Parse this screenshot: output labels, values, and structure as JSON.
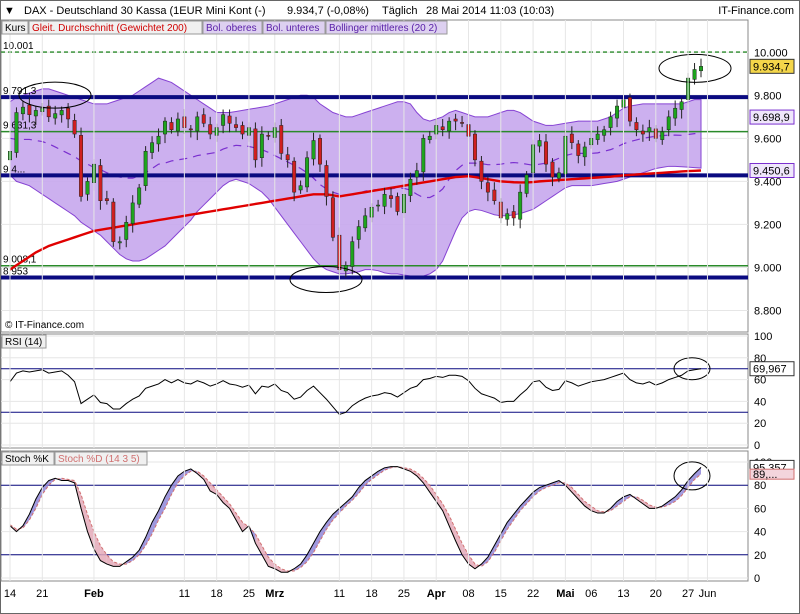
{
  "header": {
    "symbol": "DAX - Deutschland 30 Kassa (1EUR Mini Kont (-)",
    "quote": "9.934,7 (-0,08%)",
    "period": "Täglich",
    "datetime": "28 Mai 2014 11:03 (10:03)",
    "source": "IT-Finance.com"
  },
  "legend": {
    "kurs": "Kurs",
    "ma200": "Gleit. Durchschnitt (Gewichtet 200)",
    "bol_upper": "Bol. oberes",
    "bol_lower": "Bol. unteres",
    "bol_mid": "Bollinger mittleres (20 2)"
  },
  "watermark": "© IT-Finance.com",
  "colors": {
    "up": "#1ea51e",
    "down": "#d01f1f",
    "ma200": "#e00000",
    "bollinger_fill": "#c7a8ee",
    "bollinger_line": "#7a2fcf",
    "support": "#0a0a80",
    "green_level": "#2a8a2a",
    "rsi_line": "#000000",
    "stoch_k": "#000000",
    "stoch_d": "#d07070",
    "badge_price": "#f4d64a"
  },
  "chart_data": [
    {
      "type": "candlestick",
      "title": "DAX - Deutschland 30 Kassa (1EUR Mini Kont (-)",
      "ylim": [
        8700,
        10150
      ],
      "yticks": [
        8800,
        9000,
        9200,
        9400,
        9600,
        9800,
        10000
      ],
      "ytick_labels": [
        "8.800",
        "9.000",
        "9.200",
        "9.400",
        "9.600",
        "9.800",
        "10.000"
      ],
      "x_labels": [
        "14",
        "21",
        "Feb",
        "11",
        "18",
        "25",
        "Mrz",
        "11",
        "18",
        "25",
        "Apr",
        "08",
        "15",
        "22",
        "Mai",
        "06",
        "13",
        "20",
        "27",
        "Jun"
      ],
      "x_label_days": [
        0,
        5,
        13,
        27,
        32,
        37,
        41,
        51,
        56,
        61,
        66,
        71,
        76,
        81,
        86,
        90,
        95,
        100,
        105,
        108
      ],
      "level_labels": [
        "10.001",
        "9.791,3",
        "9.631,3",
        "9.4...",
        "9.008,1",
        "8.953"
      ],
      "horizontal_levels": [
        {
          "value": 10001,
          "style": "dashed-green"
        },
        {
          "value": 9791.3,
          "style": "support"
        },
        {
          "value": 9631.3,
          "style": "green"
        },
        {
          "value": 9428,
          "style": "support"
        },
        {
          "value": 9008.1,
          "style": "green"
        },
        {
          "value": 8953,
          "style": "support"
        }
      ],
      "value_badges": [
        {
          "value": 9934.7,
          "label": "9.934,7",
          "style": "price"
        },
        {
          "value": 9698.9,
          "label": "9.698,9",
          "style": "bol_upper"
        },
        {
          "value": 9450.6,
          "label": "9.450,6",
          "style": "ma200"
        }
      ],
      "series": [
        {
          "name": "Kurs",
          "close": [
            9540,
            9720,
            9745,
            9710,
            9730,
            9740,
            9700,
            9715,
            9730,
            9690,
            9620,
            9330,
            9400,
            9480,
            9310,
            9310,
            9120,
            9120,
            9210,
            9300,
            9370,
            9540,
            9580,
            9610,
            9680,
            9640,
            9690,
            9650,
            9640,
            9700,
            9670,
            9620,
            9650,
            9710,
            9670,
            9650,
            9620,
            9650,
            9500,
            9620,
            9610,
            9650,
            9530,
            9500,
            9350,
            9380,
            9510,
            9590,
            9480,
            9330,
            9140,
            8990,
            9010,
            9120,
            9190,
            9240,
            9280,
            9290,
            9340,
            9320,
            9260,
            9340,
            9410,
            9450,
            9600,
            9610,
            9660,
            9640,
            9680,
            9680,
            9670,
            9610,
            9500,
            9400,
            9350,
            9310,
            9230,
            9250,
            9230,
            9350,
            9430,
            9570,
            9590,
            9480,
            9420,
            9440,
            9610,
            9580,
            9520,
            9560,
            9600,
            9620,
            9640,
            9700,
            9750,
            9780,
            9680,
            9640,
            9620,
            9650,
            9600,
            9630,
            9700,
            9740,
            9770,
            9880,
            9920,
            9934.7
          ]
        },
        {
          "name": "Gleit. Durchschnitt (Gewichtet 200)",
          "values": [
            8990,
            9010,
            9030,
            9050,
            9070,
            9085,
            9100,
            9110,
            9120,
            9130,
            9140,
            9150,
            9160,
            9170,
            9175,
            9180,
            9185,
            9190,
            9195,
            9200,
            9205,
            9210,
            9215,
            9220,
            9225,
            9230,
            9235,
            9240,
            9245,
            9250,
            9255,
            9260,
            9265,
            9270,
            9275,
            9280,
            9285,
            9290,
            9295,
            9300,
            9305,
            9310,
            9315,
            9320,
            9325,
            9330,
            9335,
            9340,
            9340,
            9340,
            9335,
            9330,
            9335,
            9340,
            9345,
            9350,
            9355,
            9360,
            9365,
            9370,
            9375,
            9380,
            9385,
            9390,
            9395,
            9400,
            9405,
            9410,
            9415,
            9420,
            9422,
            9424,
            9420,
            9415,
            9410,
            9405,
            9400,
            9398,
            9396,
            9395,
            9395,
            9397,
            9400,
            9402,
            9404,
            9406,
            9408,
            9410,
            9412,
            9414,
            9416,
            9418,
            9420,
            9422,
            9425,
            9428,
            9430,
            9432,
            9434,
            9436,
            9438,
            9440,
            9442,
            9444,
            9446,
            9448,
            9449,
            9450.6
          ]
        },
        {
          "name": "Bol. oberes",
          "values": [
            9770,
            9790,
            9800,
            9810,
            9820,
            9830,
            9830,
            9820,
            9810,
            9800,
            9790,
            9780,
            9770,
            9760,
            9760,
            9760,
            9770,
            9780,
            9790,
            9800,
            9820,
            9840,
            9860,
            9880,
            9870,
            9860,
            9840,
            9820,
            9800,
            9780,
            9760,
            9740,
            9720,
            9720,
            9720,
            9725,
            9730,
            9735,
            9740,
            9745,
            9750,
            9760,
            9770,
            9780,
            9790,
            9800,
            9800,
            9790,
            9760,
            9740,
            9720,
            9710,
            9700,
            9700,
            9710,
            9720,
            9730,
            9740,
            9750,
            9760,
            9770,
            9770,
            9760,
            9720,
            9690,
            9680,
            9690,
            9700,
            9720,
            9730,
            9720,
            9710,
            9700,
            9700,
            9700,
            9710,
            9720,
            9730,
            9730,
            9720,
            9700,
            9680,
            9670,
            9660,
            9660,
            9665,
            9670,
            9675,
            9680,
            9680,
            9680,
            9680,
            9690,
            9700,
            9720,
            9740,
            9750,
            9755,
            9760,
            9760,
            9760,
            9760,
            9760,
            9760,
            9760,
            9770,
            9780,
            9780
          ]
        },
        {
          "name": "Bol. unteres",
          "values": [
            9430,
            9400,
            9390,
            9380,
            9360,
            9340,
            9320,
            9300,
            9280,
            9260,
            9240,
            9210,
            9190,
            9170,
            9150,
            9120,
            9090,
            9060,
            9040,
            9030,
            9030,
            9040,
            9060,
            9080,
            9100,
            9130,
            9160,
            9190,
            9220,
            9260,
            9290,
            9320,
            9350,
            9380,
            9400,
            9410,
            9400,
            9390,
            9370,
            9350,
            9320,
            9280,
            9240,
            9200,
            9160,
            9120,
            9080,
            9040,
            9010,
            8990,
            8980,
            8970,
            8970,
            8975,
            8980,
            8990,
            8990,
            8985,
            8975,
            8970,
            8970,
            8965,
            8960,
            8960,
            8960,
            8970,
            8990,
            9030,
            9100,
            9170,
            9230,
            9260,
            9270,
            9265,
            9255,
            9245,
            9240,
            9240,
            9245,
            9250,
            9260,
            9270,
            9290,
            9310,
            9330,
            9350,
            9370,
            9380,
            9380,
            9380,
            9380,
            9385,
            9390,
            9395,
            9400,
            9410,
            9420,
            9430,
            9440,
            9450,
            9460,
            9465,
            9470,
            9470,
            9468,
            9466,
            9464,
            9462
          ]
        }
      ]
    },
    {
      "type": "line",
      "title": "RSI (14)",
      "ylim": [
        0,
        100
      ],
      "yticks": [
        0,
        20,
        40,
        60,
        80,
        100
      ],
      "levels": [
        30,
        70
      ],
      "value_badge": "69,967",
      "series": [
        {
          "name": "RSI (14)",
          "values": [
            58,
            66,
            68,
            67,
            68,
            69,
            66,
            67,
            68,
            64,
            58,
            38,
            42,
            46,
            39,
            38,
            33,
            33,
            38,
            42,
            45,
            52,
            54,
            56,
            60,
            57,
            60,
            57,
            56,
            59,
            57,
            54,
            56,
            59,
            56,
            55,
            53,
            55,
            47,
            54,
            53,
            56,
            50,
            48,
            42,
            44,
            50,
            54,
            48,
            42,
            35,
            28,
            30,
            36,
            40,
            43,
            45,
            46,
            48,
            47,
            44,
            48,
            52,
            54,
            60,
            61,
            63,
            62,
            64,
            64,
            63,
            59,
            52,
            47,
            45,
            43,
            39,
            40,
            40,
            46,
            51,
            58,
            59,
            53,
            50,
            51,
            59,
            57,
            54,
            56,
            58,
            59,
            60,
            62,
            64,
            66,
            60,
            57,
            56,
            58,
            55,
            57,
            60,
            62,
            64,
            68,
            69,
            69.967
          ]
        }
      ]
    },
    {
      "type": "line",
      "title": "Stoch %K / Stoch %D (14 3 5)",
      "ylim": [
        0,
        100
      ],
      "yticks": [
        0,
        20,
        40,
        60,
        80,
        100
      ],
      "levels": [
        20,
        80
      ],
      "value_badges": [
        "95,357",
        "89,..."
      ],
      "series": [
        {
          "name": "Stoch %K",
          "values": [
            45,
            40,
            45,
            55,
            68,
            78,
            84,
            86,
            84,
            84,
            82,
            60,
            40,
            25,
            15,
            12,
            10,
            10,
            14,
            18,
            24,
            35,
            48,
            58,
            70,
            80,
            88,
            92,
            94,
            90,
            85,
            75,
            72,
            65,
            60,
            50,
            40,
            45,
            30,
            20,
            10,
            8,
            5,
            5,
            8,
            12,
            20,
            30,
            40,
            48,
            55,
            60,
            65,
            70,
            78,
            84,
            88,
            92,
            95,
            96,
            96,
            94,
            92,
            88,
            82,
            74,
            66,
            58,
            45,
            32,
            20,
            12,
            8,
            12,
            18,
            28,
            38,
            48,
            55,
            62,
            68,
            74,
            78,
            80,
            82,
            84,
            80,
            74,
            68,
            62,
            58,
            56,
            56,
            60,
            66,
            70,
            72,
            68,
            64,
            60,
            60,
            62,
            66,
            70,
            76,
            84,
            90,
            95.357
          ]
        },
        {
          "name": "Stoch %D",
          "values": [
            46,
            42,
            43,
            50,
            60,
            72,
            80,
            85,
            86,
            85,
            84,
            72,
            55,
            40,
            28,
            20,
            14,
            12,
            12,
            15,
            20,
            28,
            38,
            50,
            60,
            72,
            82,
            88,
            92,
            92,
            88,
            82,
            76,
            70,
            64,
            56,
            48,
            44,
            38,
            28,
            18,
            12,
            8,
            6,
            6,
            9,
            14,
            22,
            32,
            42,
            50,
            56,
            62,
            67,
            73,
            80,
            85,
            89,
            93,
            95,
            96,
            95,
            94,
            91,
            86,
            80,
            72,
            64,
            54,
            42,
            30,
            20,
            12,
            10,
            14,
            22,
            32,
            42,
            50,
            58,
            64,
            70,
            75,
            78,
            80,
            82,
            82,
            78,
            72,
            66,
            62,
            58,
            57,
            58,
            62,
            66,
            70,
            70,
            67,
            63,
            61,
            61,
            63,
            66,
            71,
            78,
            85,
            89.5
          ]
        }
      ]
    }
  ]
}
